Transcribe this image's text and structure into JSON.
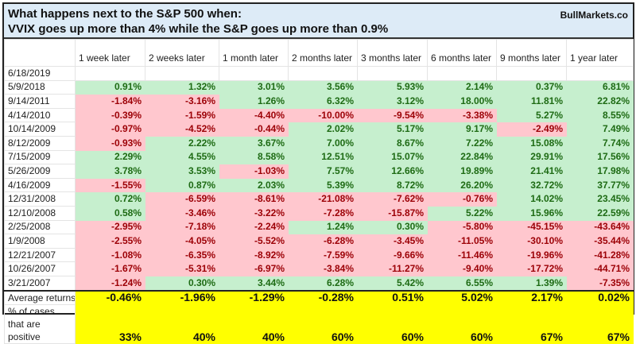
{
  "title": {
    "line1": "What happens next to the S&P 500 when:",
    "line2": "VVIX goes up more than 4% while the S&P goes up more than 0.9%",
    "brand": "BullMarkets.co"
  },
  "columns": [
    "1 week later",
    "2 weeks later",
    "1 month later",
    "2 months later",
    "3 months later",
    "6 months later",
    "9 months later",
    "1 year later"
  ],
  "rows": [
    {
      "date": "6/18/2019",
      "values": [
        "",
        "",
        "",
        "",
        "",
        "",
        "",
        ""
      ]
    },
    {
      "date": "5/9/2018",
      "values": [
        "0.91%",
        "1.32%",
        "3.01%",
        "3.56%",
        "5.93%",
        "2.14%",
        "0.37%",
        "6.81%"
      ]
    },
    {
      "date": "9/14/2011",
      "values": [
        "-1.84%",
        "-3.16%",
        "1.26%",
        "6.32%",
        "3.12%",
        "18.00%",
        "11.81%",
        "22.82%"
      ]
    },
    {
      "date": "4/14/2010",
      "values": [
        "-0.39%",
        "-1.59%",
        "-4.40%",
        "-10.00%",
        "-9.54%",
        "-3.38%",
        "5.27%",
        "8.55%"
      ]
    },
    {
      "date": "10/14/2009",
      "values": [
        "-0.97%",
        "-4.52%",
        "-0.44%",
        "2.02%",
        "5.17%",
        "9.17%",
        "-2.49%",
        "7.49%"
      ]
    },
    {
      "date": "8/12/2009",
      "values": [
        "-0.93%",
        "2.22%",
        "3.67%",
        "7.00%",
        "8.67%",
        "7.22%",
        "15.08%",
        "7.74%"
      ]
    },
    {
      "date": "7/15/2009",
      "values": [
        "2.29%",
        "4.55%",
        "8.58%",
        "12.51%",
        "15.07%",
        "22.84%",
        "29.91%",
        "17.56%"
      ]
    },
    {
      "date": "5/26/2009",
      "values": [
        "3.78%",
        "3.53%",
        "-1.03%",
        "7.57%",
        "12.66%",
        "19.89%",
        "21.41%",
        "17.98%"
      ]
    },
    {
      "date": "4/16/2009",
      "values": [
        "-1.55%",
        "0.87%",
        "2.03%",
        "5.39%",
        "8.72%",
        "26.20%",
        "32.72%",
        "37.77%"
      ]
    },
    {
      "date": "12/31/2008",
      "values": [
        "0.72%",
        "-6.59%",
        "-8.61%",
        "-21.08%",
        "-7.62%",
        "-0.76%",
        "14.02%",
        "23.45%"
      ]
    },
    {
      "date": "12/10/2008",
      "values": [
        "0.58%",
        "-3.46%",
        "-3.22%",
        "-7.28%",
        "-15.87%",
        "5.22%",
        "15.96%",
        "22.59%"
      ]
    },
    {
      "date": "2/25/2008",
      "values": [
        "-2.95%",
        "-7.18%",
        "-2.24%",
        "1.24%",
        "0.30%",
        "-5.80%",
        "-45.15%",
        "-43.64%"
      ]
    },
    {
      "date": "1/9/2008",
      "values": [
        "-2.55%",
        "-4.05%",
        "-5.52%",
        "-6.28%",
        "-3.45%",
        "-11.05%",
        "-30.10%",
        "-35.44%"
      ]
    },
    {
      "date": "12/21/2007",
      "values": [
        "-1.08%",
        "-6.35%",
        "-8.92%",
        "-7.59%",
        "-9.66%",
        "-11.46%",
        "-19.96%",
        "-41.28%"
      ]
    },
    {
      "date": "10/26/2007",
      "values": [
        "-1.67%",
        "-5.31%",
        "-6.97%",
        "-3.84%",
        "-11.27%",
        "-9.40%",
        "-17.72%",
        "-44.71%"
      ]
    },
    {
      "date": "3/21/2007",
      "values": [
        "-1.24%",
        "0.30%",
        "3.44%",
        "6.28%",
        "5.42%",
        "6.55%",
        "1.39%",
        "-7.35%"
      ]
    }
  ],
  "summary": {
    "avg_label": "Average returns",
    "avg": [
      "-0.46%",
      "-1.96%",
      "-1.29%",
      "-0.28%",
      "0.51%",
      "5.02%",
      "2.17%",
      "0.02%"
    ],
    "pct_label": "% of cases that are positive",
    "pct": [
      "33%",
      "40%",
      "40%",
      "60%",
      "60%",
      "60%",
      "67%",
      "67%"
    ]
  },
  "colors": {
    "positive_bg": "#c6efce",
    "positive_text": "#1e6b14",
    "negative_bg": "#ffc7ce",
    "negative_text": "#9c0006",
    "summary_bg": "#ffff00",
    "title_bg": "#ddebf7"
  }
}
